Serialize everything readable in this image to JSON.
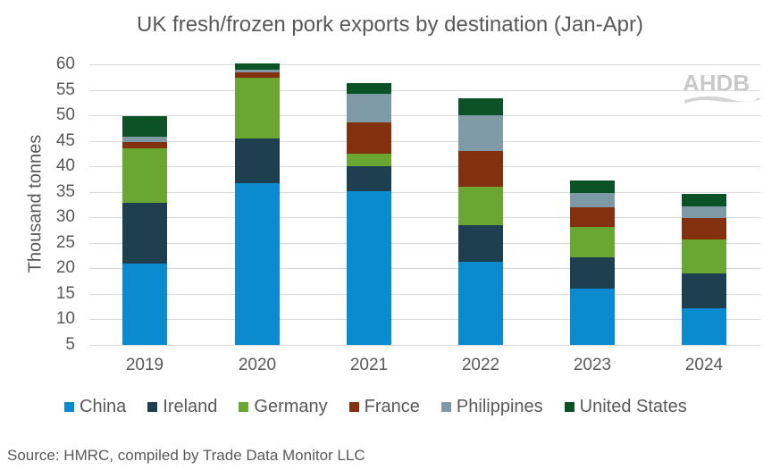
{
  "chart_data": {
    "type": "bar",
    "stacked": true,
    "title": "UK fresh/frozen pork exports by destination (Jan-Apr)",
    "xlabel": "",
    "ylabel": "Thousand tonnes",
    "ylim": [
      5,
      60
    ],
    "yticks": [
      5,
      10,
      15,
      20,
      25,
      30,
      35,
      40,
      45,
      50,
      55,
      60
    ],
    "grid": true,
    "legend_position": "bottom",
    "categories": [
      "2019",
      "2020",
      "2021",
      "2022",
      "2023",
      "2024"
    ],
    "series": [
      {
        "name": "China",
        "color": "#0a8bd0",
        "values": [
          15.9,
          31.7,
          30.1,
          16.3,
          11.1,
          7.1
        ]
      },
      {
        "name": "Ireland",
        "color": "#1e3f50",
        "values": [
          11.9,
          8.8,
          4.9,
          7.2,
          6.1,
          6.9
        ]
      },
      {
        "name": "Germany",
        "color": "#6aa632",
        "values": [
          10.8,
          11.8,
          2.4,
          7.5,
          5.9,
          6.7
        ]
      },
      {
        "name": "France",
        "color": "#83300f",
        "values": [
          1.2,
          1.1,
          6.3,
          7.0,
          3.9,
          4.2
        ]
      },
      {
        "name": "Philippines",
        "color": "#7d9aa6",
        "values": [
          1.0,
          0.5,
          5.6,
          7.0,
          2.8,
          2.3
        ]
      },
      {
        "name": "United States",
        "color": "#0b5327",
        "values": [
          4.0,
          1.2,
          2.1,
          3.4,
          2.4,
          2.4
        ]
      }
    ],
    "totals_on_axis": [
      49.8,
      60.1,
      56.4,
      53.4,
      37.2,
      34.6
    ],
    "source": "Source: HMRC, compiled by Trade Data Monitor LLC"
  },
  "logo": {
    "text": "AHDB"
  }
}
